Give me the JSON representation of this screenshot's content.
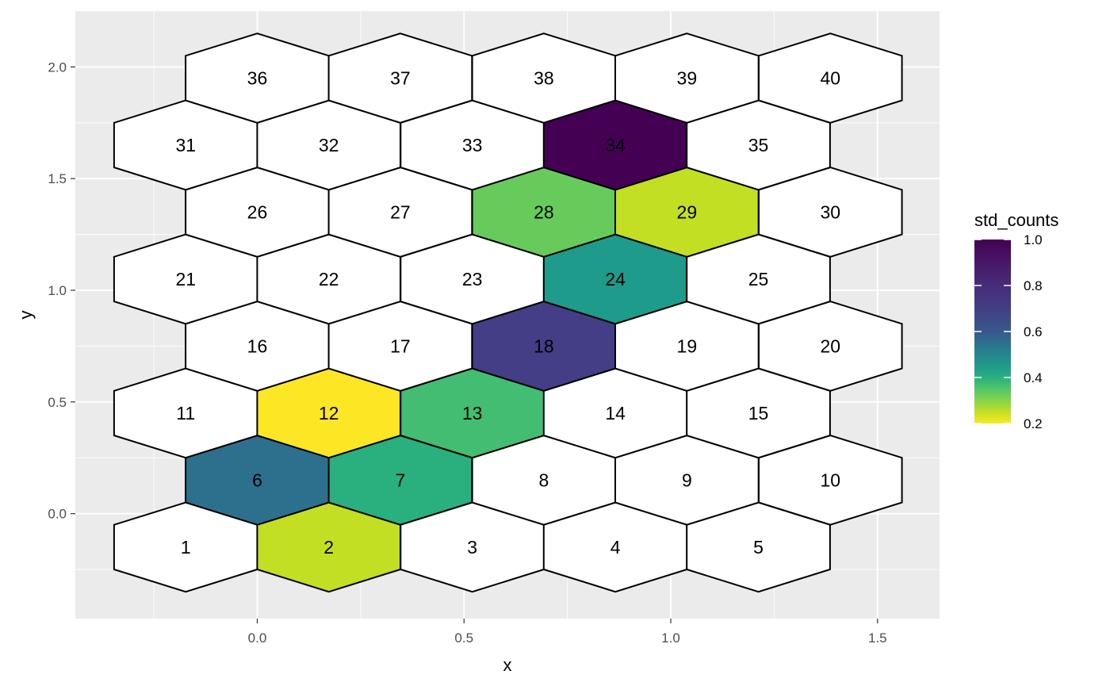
{
  "chart_data": {
    "type": "heatmap",
    "title": "",
    "xlabel": "x",
    "ylabel": "y",
    "xlim": [
      -0.44,
      1.65
    ],
    "ylim": [
      -0.47,
      2.25
    ],
    "x_ticks": [
      0.0,
      0.5,
      1.0,
      1.5
    ],
    "y_ticks": [
      0.0,
      0.5,
      1.0,
      1.5,
      2.0
    ],
    "x_tick_labels": [
      "0.0",
      "0.5",
      "1.0",
      "1.5"
    ],
    "y_tick_labels": [
      "0.0",
      "0.5",
      "1.0",
      "1.5",
      "2.0"
    ],
    "grid": true,
    "panel_background": "#ebebeb",
    "grid_color": "#ffffff",
    "hex_outline": "#000000",
    "empty_fill": "#ffffff",
    "cells": [
      {
        "id": 1,
        "label": "1",
        "x": -0.173,
        "y": -0.15,
        "value": null
      },
      {
        "id": 2,
        "label": "2",
        "x": 0.173,
        "y": -0.15,
        "value": 0.25
      },
      {
        "id": 3,
        "label": "3",
        "x": 0.52,
        "y": -0.15,
        "value": null
      },
      {
        "id": 4,
        "label": "4",
        "x": 0.866,
        "y": -0.15,
        "value": null
      },
      {
        "id": 5,
        "label": "5",
        "x": 1.212,
        "y": -0.15,
        "value": null
      },
      {
        "id": 6,
        "label": "6",
        "x": 0.0,
        "y": 0.15,
        "value": 0.55
      },
      {
        "id": 7,
        "label": "7",
        "x": 0.346,
        "y": 0.15,
        "value": 0.4
      },
      {
        "id": 8,
        "label": "8",
        "x": 0.693,
        "y": 0.15,
        "value": null
      },
      {
        "id": 9,
        "label": "9",
        "x": 1.039,
        "y": 0.15,
        "value": null
      },
      {
        "id": 10,
        "label": "10",
        "x": 1.386,
        "y": 0.15,
        "value": null
      },
      {
        "id": 11,
        "label": "11",
        "x": -0.173,
        "y": 0.45,
        "value": null
      },
      {
        "id": 12,
        "label": "12",
        "x": 0.173,
        "y": 0.45,
        "value": 0.2
      },
      {
        "id": 13,
        "label": "13",
        "x": 0.52,
        "y": 0.45,
        "value": 0.37
      },
      {
        "id": 14,
        "label": "14",
        "x": 0.866,
        "y": 0.45,
        "value": null
      },
      {
        "id": 15,
        "label": "15",
        "x": 1.212,
        "y": 0.45,
        "value": null
      },
      {
        "id": 16,
        "label": "16",
        "x": 0.0,
        "y": 0.75,
        "value": null
      },
      {
        "id": 17,
        "label": "17",
        "x": 0.346,
        "y": 0.75,
        "value": null
      },
      {
        "id": 18,
        "label": "18",
        "x": 0.693,
        "y": 0.75,
        "value": 0.7
      },
      {
        "id": 19,
        "label": "19",
        "x": 1.039,
        "y": 0.75,
        "value": null
      },
      {
        "id": 20,
        "label": "20",
        "x": 1.386,
        "y": 0.75,
        "value": null
      },
      {
        "id": 21,
        "label": "21",
        "x": -0.173,
        "y": 1.05,
        "value": null
      },
      {
        "id": 22,
        "label": "22",
        "x": 0.173,
        "y": 1.05,
        "value": null
      },
      {
        "id": 23,
        "label": "23",
        "x": 0.52,
        "y": 1.05,
        "value": null
      },
      {
        "id": 24,
        "label": "24",
        "x": 0.866,
        "y": 1.05,
        "value": 0.45
      },
      {
        "id": 25,
        "label": "25",
        "x": 1.212,
        "y": 1.05,
        "value": null
      },
      {
        "id": 26,
        "label": "26",
        "x": 0.0,
        "y": 1.35,
        "value": null
      },
      {
        "id": 27,
        "label": "27",
        "x": 0.346,
        "y": 1.35,
        "value": null
      },
      {
        "id": 28,
        "label": "28",
        "x": 0.693,
        "y": 1.35,
        "value": 0.33
      },
      {
        "id": 29,
        "label": "29",
        "x": 1.039,
        "y": 1.35,
        "value": 0.25
      },
      {
        "id": 30,
        "label": "30",
        "x": 1.386,
        "y": 1.35,
        "value": null
      },
      {
        "id": 31,
        "label": "31",
        "x": -0.173,
        "y": 1.65,
        "value": null
      },
      {
        "id": 32,
        "label": "32",
        "x": 0.173,
        "y": 1.65,
        "value": null
      },
      {
        "id": 33,
        "label": "33",
        "x": 0.52,
        "y": 1.65,
        "value": null
      },
      {
        "id": 34,
        "label": "34",
        "x": 0.866,
        "y": 1.65,
        "value": 1.0
      },
      {
        "id": 35,
        "label": "35",
        "x": 1.212,
        "y": 1.65,
        "value": null
      },
      {
        "id": 36,
        "label": "36",
        "x": 0.0,
        "y": 1.95,
        "value": null
      },
      {
        "id": 37,
        "label": "37",
        "x": 0.346,
        "y": 1.95,
        "value": null
      },
      {
        "id": 38,
        "label": "38",
        "x": 0.693,
        "y": 1.95,
        "value": null
      },
      {
        "id": 39,
        "label": "39",
        "x": 1.039,
        "y": 1.95,
        "value": null
      },
      {
        "id": 40,
        "label": "40",
        "x": 1.386,
        "y": 1.95,
        "value": null
      }
    ],
    "legend": {
      "title": "std_counts",
      "placement": "right",
      "min": 0.2,
      "max": 1.0,
      "ticks": [
        0.2,
        0.4,
        0.6,
        0.8,
        1.0
      ],
      "tick_labels": [
        "0.2",
        "0.4",
        "0.6",
        "0.8",
        "1.0"
      ],
      "colormap": "viridis-reversed",
      "gradient_stops": [
        {
          "t": 0.0,
          "color": "#fde725"
        },
        {
          "t": 0.125,
          "color": "#c2df23"
        },
        {
          "t": 0.25,
          "color": "#86d549"
        },
        {
          "t": 0.375,
          "color": "#52c569"
        },
        {
          "t": 0.5,
          "color": "#2ab07f"
        },
        {
          "t": 0.625,
          "color": "#1e9b8a"
        },
        {
          "t": 0.75,
          "color": "#25858e"
        },
        {
          "t": 0.875,
          "color": "#2d708e"
        },
        {
          "t": 1.0,
          "color": "#38588c"
        }
      ],
      "gradient_stops_high": [
        {
          "t": 0.0,
          "color": "#38588c"
        },
        {
          "t": 0.25,
          "color": "#433e85"
        },
        {
          "t": 0.5,
          "color": "#472c7a"
        },
        {
          "t": 0.75,
          "color": "#481769"
        },
        {
          "t": 1.0,
          "color": "#440154"
        }
      ]
    }
  }
}
